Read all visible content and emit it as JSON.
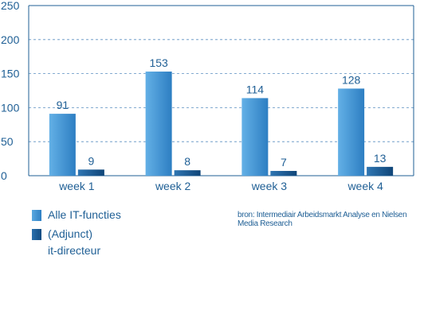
{
  "chart_data": {
    "type": "bar",
    "categories": [
      "week 1",
      "week 2",
      "week 3",
      "week 4"
    ],
    "series": [
      {
        "name": "Alle IT-functies",
        "values": [
          91,
          153,
          114,
          128
        ],
        "color": "#3b8fd0"
      },
      {
        "name": "(Adjunct) it-directeur",
        "values": [
          9,
          8,
          7,
          13
        ],
        "color": "#1b5d9a"
      }
    ],
    "ylim": [
      0,
      250
    ],
    "yticks": [
      0,
      50,
      100,
      150,
      200,
      250
    ],
    "grid": true,
    "legend_placement": "bottom-left"
  },
  "legend": {
    "item1": "Alle IT-functies",
    "item2_line1": "(Adjunct)",
    "item2_line2": "it-directeur"
  },
  "source": "bron: Intermediair Arbeidsmarkt Analyse en Nielsen Media Research"
}
